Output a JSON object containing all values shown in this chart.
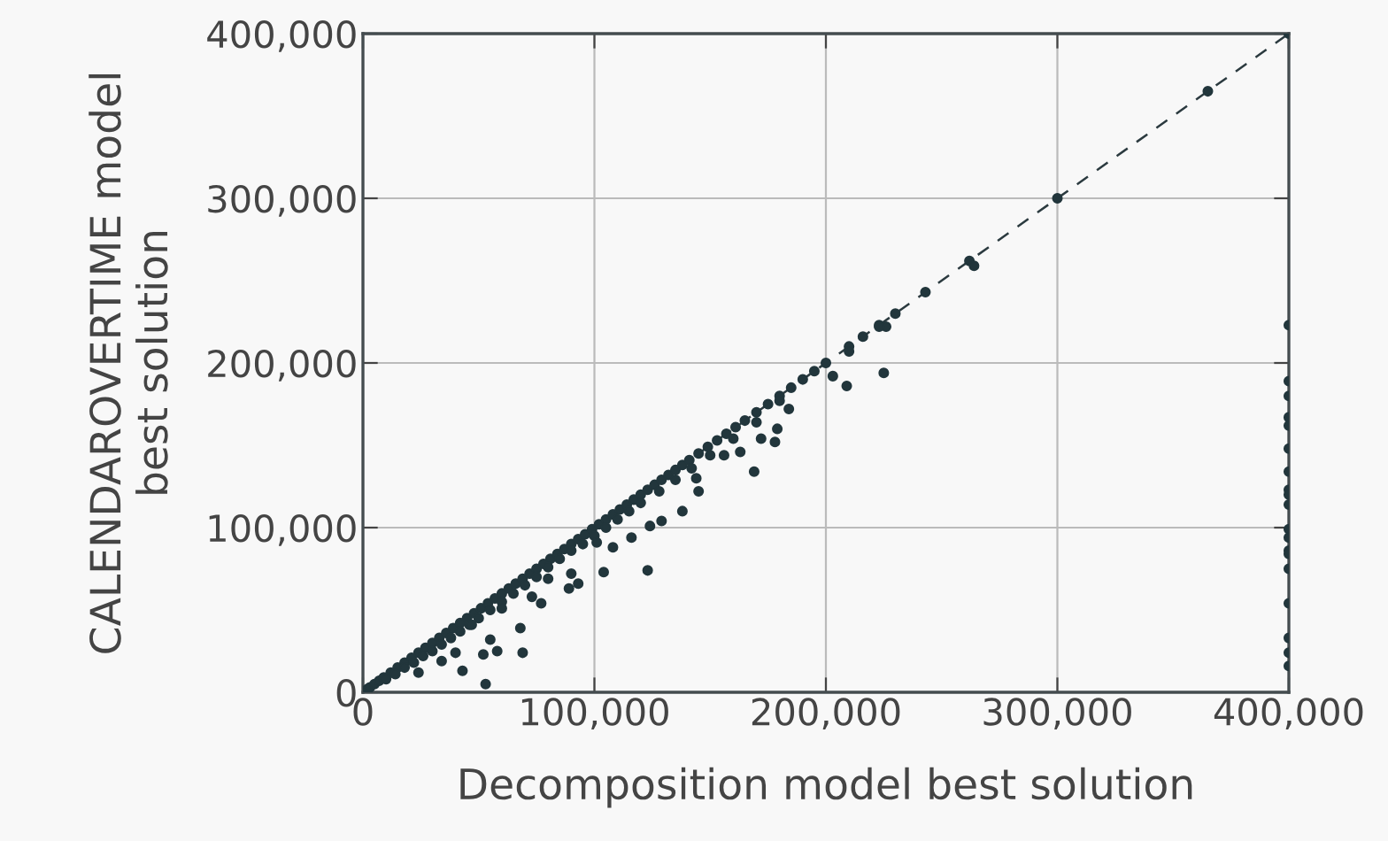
{
  "chart_data": {
    "type": "scatter",
    "xlabel": "Decomposition model best solution",
    "ylabel": "CALENDAROVERTIME model\nbest solution",
    "xlim": [
      0,
      400000
    ],
    "ylim": [
      0,
      400000
    ],
    "xticks": [
      0,
      {
        "value": 100000,
        "label": "100,000"
      },
      {
        "value": 200000,
        "label": "200,000"
      },
      {
        "value": 300000,
        "label": "300,000"
      },
      {
        "value": 400000,
        "label": "400,000"
      }
    ],
    "yticks": [
      0,
      {
        "value": 100000,
        "label": "100,000"
      },
      {
        "value": 200000,
        "label": "200,000"
      },
      {
        "value": 300000,
        "label": "300,000"
      },
      {
        "value": 400000,
        "label": "400,000"
      }
    ],
    "grid": true,
    "legend": false,
    "marker": "circle",
    "series": [
      {
        "type": "line",
        "color": "#2b3a3f",
        "line_style": "dashed",
        "marker": "none",
        "x": [
          0,
          400000
        ],
        "values": [
          0,
          400000
        ]
      },
      {
        "color": "#22363c",
        "x": [
          2000,
          3000,
          5000,
          7000,
          9000,
          12000,
          15000,
          18000,
          21000,
          24000,
          27000,
          30000,
          33000,
          36000,
          39000,
          42000,
          45000,
          48000,
          51000,
          54000,
          57000,
          60000,
          63000,
          66000,
          69000,
          72000,
          75000,
          78000,
          81000,
          84000,
          87000,
          90000,
          93000,
          96000,
          99000,
          102000,
          105000,
          108000,
          111000,
          114000,
          117000,
          120000,
          123000,
          126000,
          129000,
          132000,
          135000,
          138000,
          141000,
          145000,
          149000,
          153000,
          157000,
          161000,
          165000,
          170000,
          175000,
          180000,
          185000,
          190000,
          195000,
          200000,
          210000,
          216000,
          223000,
          230000,
          243000,
          262000,
          300000,
          365000,
          400000,
          10000,
          14000,
          18000,
          22000,
          26000,
          30000,
          34000,
          38000,
          42000,
          46000,
          50000,
          55000,
          60000,
          65000,
          70000,
          75000,
          80000,
          85000,
          90000,
          95000,
          100000,
          105000,
          110000,
          115000,
          120000,
          128000,
          135000,
          142000,
          150000,
          160000,
          170000,
          264000,
          53000,
          69000,
          43000,
          52000,
          58000,
          55000,
          68000,
          77000,
          89000,
          104000,
          123000,
          108000,
          116000,
          124000,
          129000,
          138000,
          145000,
          156000,
          163000,
          169000,
          172000,
          178000,
          179000,
          184000,
          203000,
          209000,
          225000,
          226000,
          93000,
          90000,
          24000,
          34000,
          40000,
          47000,
          60000,
          73000,
          80000,
          101000,
          144000,
          180000,
          210000,
          223000,
          400000,
          400000,
          400000,
          400000,
          400000,
          400000,
          400000,
          400000,
          400000,
          400000,
          400000,
          400000,
          400000,
          400000,
          400000,
          400000,
          400000,
          400000,
          400000
        ],
        "values": [
          2000,
          3000,
          5000,
          7000,
          9000,
          12000,
          15000,
          18000,
          21000,
          24000,
          27000,
          30000,
          33000,
          36000,
          39000,
          42000,
          45000,
          48000,
          51000,
          54000,
          57000,
          60000,
          63000,
          66000,
          69000,
          72000,
          75000,
          78000,
          81000,
          84000,
          87000,
          90000,
          93000,
          96000,
          99000,
          102000,
          105000,
          108000,
          111000,
          114000,
          117000,
          120000,
          123000,
          126000,
          129000,
          132000,
          135000,
          138000,
          141000,
          145000,
          149000,
          153000,
          157000,
          161000,
          165000,
          170000,
          175000,
          180000,
          185000,
          190000,
          195000,
          200000,
          210000,
          216000,
          223000,
          230000,
          243000,
          262000,
          300000,
          365000,
          400000,
          8000,
          11000,
          15000,
          18000,
          22000,
          25000,
          29000,
          33000,
          37000,
          41000,
          45000,
          50000,
          55000,
          60000,
          65000,
          70000,
          76000,
          81000,
          86000,
          90000,
          95000,
          100000,
          105000,
          110000,
          115000,
          122000,
          129000,
          136000,
          144000,
          154000,
          164000,
          259000,
          5000,
          24000,
          13000,
          23000,
          25000,
          32000,
          39000,
          54000,
          63000,
          73000,
          74000,
          88000,
          94000,
          101000,
          104000,
          110000,
          122000,
          144000,
          146000,
          134000,
          154000,
          152000,
          160000,
          172000,
          192000,
          186000,
          194000,
          222000,
          66000,
          72000,
          12000,
          19000,
          24000,
          41000,
          51000,
          58000,
          69000,
          91000,
          130000,
          177000,
          207000,
          222000,
          223000,
          189000,
          180000,
          167000,
          162000,
          148000,
          134000,
          123000,
          120000,
          114000,
          99000,
          94000,
          86000,
          84000,
          75000,
          54000,
          33000,
          24000,
          16000
        ]
      }
    ]
  }
}
